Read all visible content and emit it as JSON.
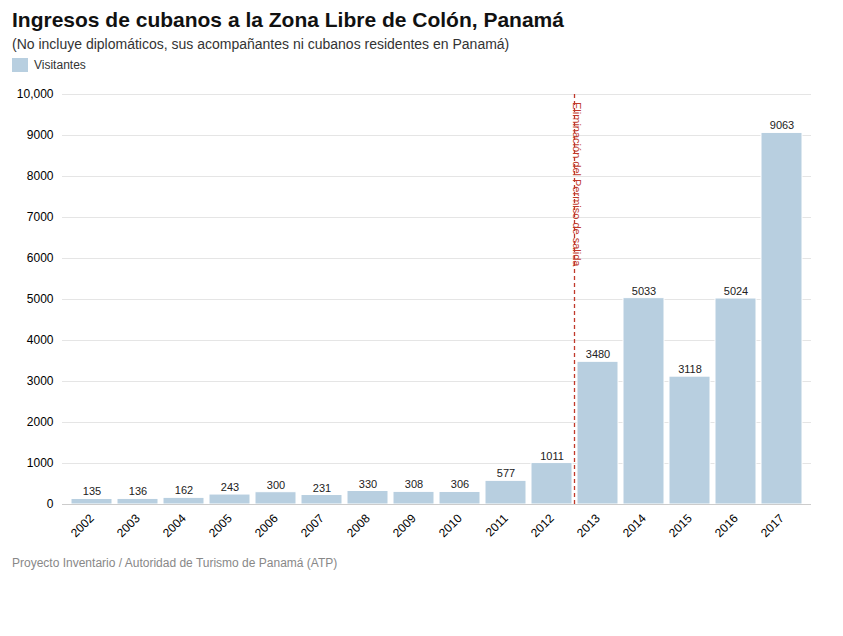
{
  "chart_data": {
    "type": "bar",
    "title": "Ingresos de cubanos a la Zona Libre de Colón, Panamá",
    "subtitle": "(No incluye diplomáticos, sus acompañantes ni cubanos residentes en Panamá)",
    "categories": [
      "2002",
      "2003",
      "2004",
      "2005",
      "2006",
      "2007",
      "2008",
      "2009",
      "2010",
      "2011",
      "2012",
      "2013",
      "2014",
      "2015",
      "2016",
      "2017"
    ],
    "series": [
      {
        "name": "Visitantes",
        "color": "#b8cfe0",
        "values": [
          135,
          136,
          162,
          243,
          300,
          231,
          330,
          308,
          306,
          577,
          1011,
          3480,
          5033,
          3118,
          5024,
          9063
        ]
      }
    ],
    "legend": "top-left",
    "ylim": [
      0,
      10000
    ],
    "yticks": [
      0,
      1000,
      2000,
      3000,
      4000,
      5000,
      6000,
      7000,
      8000,
      9000,
      {
        "value": 10000,
        "label": "10,000"
      }
    ],
    "grid": true,
    "data_labels": true,
    "annotations": [
      {
        "text": "Eliminación del Permiso de salida",
        "after": "2012",
        "color": "#c0392b",
        "line_style": "dashed"
      }
    ],
    "caption": "Proyecto Inventario / Autoridad de Turismo de Panamá (ATP)"
  }
}
